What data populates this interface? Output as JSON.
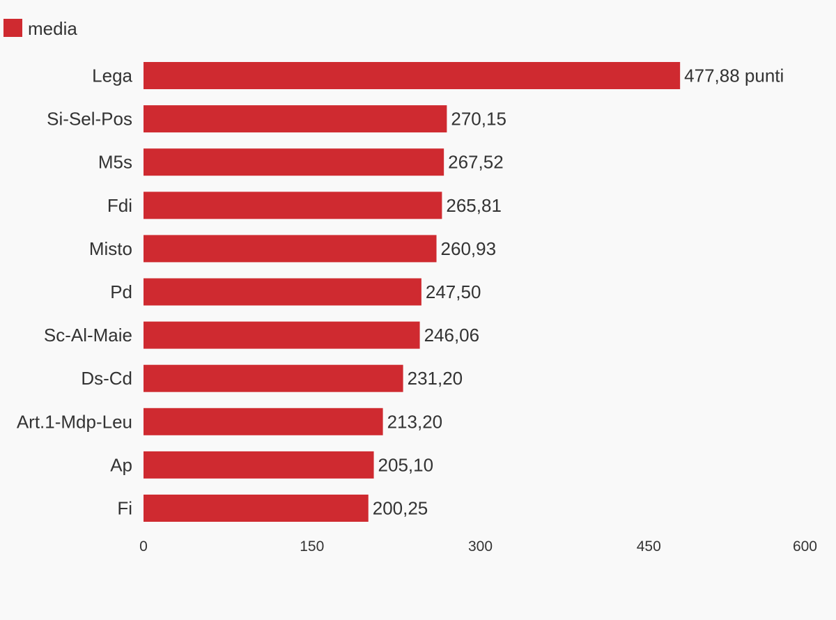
{
  "chart_data": {
    "type": "bar",
    "orientation": "horizontal",
    "legend_position": "top-left",
    "grid": false,
    "series": [
      {
        "name": "media",
        "color": "#cf2a30",
        "values": [
          477.88,
          270.15,
          267.52,
          265.81,
          260.93,
          247.5,
          246.06,
          231.2,
          213.2,
          205.1,
          200.25
        ],
        "value_labels": [
          "477,88 punti",
          "270,15",
          "267,52",
          "265,81",
          "260,93",
          "247,50",
          "246,06",
          "231,20",
          "213,20",
          "205,10",
          "200,25"
        ]
      }
    ],
    "categories": [
      "Lega",
      "Si-Sel-Pos",
      "M5s",
      "Fdi",
      "Misto",
      "Pd",
      "Sc-Al-Maie",
      "Ds-Cd",
      "Art.1-Mdp-Leu",
      "Ap",
      "Fi"
    ],
    "xlim": [
      0,
      600
    ],
    "x_ticks": [
      0,
      150,
      300,
      450,
      600
    ],
    "x_tick_labels": [
      "0",
      "150",
      "300",
      "450",
      "600"
    ]
  }
}
